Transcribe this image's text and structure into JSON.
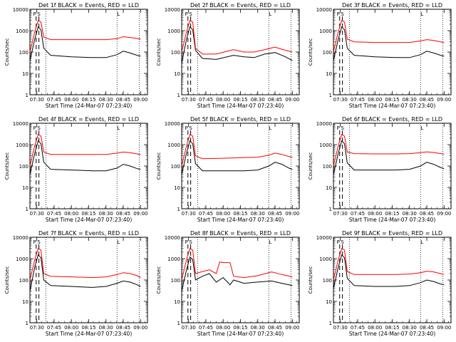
{
  "chart_data": [
    {
      "type": "line",
      "title": "Det 1f BLACK = Events, RED = LLD",
      "ylabel": "Counts/sec",
      "xlabel": "Start Time (24-Mar-07 07:23:40)",
      "x_ticks": [
        "07:30",
        "07:45",
        "08:00",
        "08:15",
        "08:30",
        "08:45",
        "09:00"
      ],
      "y_ticks": [
        "1",
        "10",
        "100",
        "1000",
        "10000"
      ],
      "yscale": "log",
      "ylim": [
        1,
        10000
      ],
      "peak_label_left": "P",
      "peak_label_mid": "S",
      "right_marker_label": "L",
      "series": [
        {
          "color": "#000000",
          "x": [
            7.4,
            7.47,
            7.52,
            7.56,
            7.6,
            7.7,
            8.0,
            8.3,
            8.5,
            8.66,
            8.75,
            8.85,
            8.95,
            9.0
          ],
          "y": [
            40,
            400,
            1500,
            1100,
            150,
            70,
            60,
            55,
            55,
            75,
            110,
            90,
            70,
            65
          ]
        },
        {
          "color": "#ff0000",
          "x": [
            7.4,
            7.47,
            7.52,
            7.56,
            7.6,
            7.7,
            8.0,
            8.3,
            8.5,
            8.66,
            8.75,
            8.85,
            8.95,
            9.0
          ],
          "y": [
            100,
            900,
            3000,
            2500,
            500,
            380,
            380,
            380,
            380,
            420,
            520,
            480,
            430,
            400
          ]
        }
      ]
    },
    {
      "type": "line",
      "title": "Det 2f BLACK = Events, RED = LLD",
      "ylabel": "Counts/sec",
      "xlabel": "Start Time (24-Mar-07 07:23:40)",
      "x_ticks": [
        "07:30",
        "07:45",
        "08:00",
        "08:15",
        "08:30",
        "08:45",
        "09:00"
      ],
      "y_ticks": [
        "1",
        "10",
        "100",
        "1000",
        "10000"
      ],
      "yscale": "log",
      "ylim": [
        1,
        10000
      ],
      "peak_label_left": "P",
      "peak_label_mid": "S",
      "right_marker_label": "L",
      "series": [
        {
          "color": "#000000",
          "x": [
            7.4,
            7.47,
            7.52,
            7.56,
            7.6,
            7.7,
            7.9,
            8.15,
            8.3,
            8.45,
            8.6,
            8.75,
            8.9,
            9.0
          ],
          "y": [
            30,
            400,
            1500,
            1100,
            120,
            50,
            45,
            70,
            60,
            55,
            80,
            95,
            60,
            40
          ]
        },
        {
          "color": "#ff0000",
          "x": [
            7.4,
            7.47,
            7.52,
            7.56,
            7.6,
            7.7,
            7.9,
            8.15,
            8.3,
            8.45,
            8.6,
            8.75,
            8.9,
            9.0
          ],
          "y": [
            100,
            900,
            3000,
            2500,
            150,
            80,
            80,
            130,
            100,
            100,
            130,
            170,
            120,
            100
          ]
        }
      ]
    },
    {
      "type": "line",
      "title": "Det 3f BLACK = Events, RED = LLD",
      "ylabel": "Counts/sec",
      "xlabel": "Start Time (24-Mar-07 07:23:40)",
      "x_ticks": [
        "07:30",
        "07:45",
        "08:00",
        "08:15",
        "08:30",
        "08:45",
        "09:00"
      ],
      "y_ticks": [
        "1",
        "10",
        "100",
        "1000",
        "10000"
      ],
      "yscale": "log",
      "ylim": [
        1,
        10000
      ],
      "peak_label_left": "P",
      "peak_label_mid": "S",
      "right_marker_label": "L",
      "series": [
        {
          "color": "#000000",
          "x": [
            7.4,
            7.47,
            7.52,
            7.56,
            7.6,
            7.7,
            8.0,
            8.3,
            8.5,
            8.66,
            8.75,
            8.85,
            8.95,
            9.0
          ],
          "y": [
            40,
            400,
            1500,
            1100,
            150,
            70,
            60,
            55,
            55,
            75,
            110,
            90,
            70,
            65
          ]
        },
        {
          "color": "#ff0000",
          "x": [
            7.4,
            7.47,
            7.52,
            7.56,
            7.6,
            7.7,
            8.0,
            8.3,
            8.5,
            8.66,
            8.75,
            8.85,
            8.95,
            9.0
          ],
          "y": [
            100,
            900,
            3000,
            2500,
            400,
            300,
            280,
            280,
            280,
            330,
            380,
            350,
            300,
            280
          ]
        }
      ]
    },
    {
      "type": "line",
      "title": "Det 4f BLACK = Events, RED = LLD",
      "ylabel": "Counts/sec",
      "xlabel": "Start Time (24-Mar-07 07:23:40)",
      "x_ticks": [
        "07:30",
        "07:45",
        "08:00",
        "08:15",
        "08:30",
        "08:45",
        "09:00"
      ],
      "y_ticks": [
        "1",
        "10",
        "100",
        "1000",
        "10000"
      ],
      "yscale": "log",
      "ylim": [
        1,
        10000
      ],
      "peak_label_left": "P",
      "peak_label_mid": "S",
      "right_marker_label": "L",
      "series": [
        {
          "color": "#000000",
          "x": [
            7.4,
            7.47,
            7.52,
            7.56,
            7.6,
            7.7,
            8.0,
            8.3,
            8.5,
            8.66,
            8.75,
            8.85,
            8.95,
            9.0
          ],
          "y": [
            40,
            400,
            1500,
            1100,
            150,
            70,
            65,
            60,
            60,
            80,
            120,
            100,
            75,
            70
          ]
        },
        {
          "color": "#ff0000",
          "x": [
            7.4,
            7.47,
            7.52,
            7.56,
            7.6,
            7.7,
            8.0,
            8.3,
            8.5,
            8.66,
            8.75,
            8.85,
            8.95,
            9.0
          ],
          "y": [
            100,
            900,
            3000,
            2500,
            450,
            350,
            350,
            350,
            350,
            400,
            450,
            420,
            370,
            340
          ]
        }
      ]
    },
    {
      "type": "line",
      "title": "Det 5f BLACK = Events, RED = LLD",
      "ylabel": "Counts/sec",
      "xlabel": "Start Time (24-Mar-07 07:23:40)",
      "x_ticks": [
        "07:30",
        "07:45",
        "08:00",
        "08:15",
        "08:30",
        "08:45",
        "09:00"
      ],
      "y_ticks": [
        "1",
        "10",
        "100",
        "1000",
        "10000"
      ],
      "yscale": "log",
      "ylim": [
        1,
        10000
      ],
      "peak_label_left": "P",
      "peak_label_mid": "S",
      "right_marker_label": "L",
      "series": [
        {
          "color": "#000000",
          "x": [
            7.4,
            7.47,
            7.52,
            7.56,
            7.6,
            7.7,
            8.0,
            8.3,
            8.5,
            8.66,
            8.75,
            8.85,
            8.95,
            9.0
          ],
          "y": [
            40,
            400,
            1500,
            1100,
            130,
            60,
            60,
            60,
            65,
            100,
            150,
            120,
            80,
            70
          ]
        },
        {
          "color": "#ff0000",
          "x": [
            7.4,
            7.47,
            7.52,
            7.56,
            7.6,
            7.7,
            8.0,
            8.3,
            8.5,
            8.66,
            8.75,
            8.85,
            8.95,
            9.0
          ],
          "y": [
            100,
            900,
            3000,
            2500,
            300,
            220,
            230,
            250,
            260,
            320,
            400,
            350,
            280,
            260
          ]
        }
      ]
    },
    {
      "type": "line",
      "title": "Det 6f BLACK = Events, RED = LLD",
      "ylabel": "Counts/sec",
      "xlabel": "Start Time (24-Mar-07 07:23:40)",
      "x_ticks": [
        "07:30",
        "07:45",
        "08:00",
        "08:15",
        "08:30",
        "08:45",
        "09:00"
      ],
      "y_ticks": [
        "1",
        "10",
        "100",
        "1000",
        "10000"
      ],
      "yscale": "log",
      "ylim": [
        1,
        10000
      ],
      "peak_label_left": "P",
      "peak_label_mid": "S",
      "right_marker_label": "L",
      "series": [
        {
          "color": "#000000",
          "x": [
            7.4,
            7.47,
            7.52,
            7.56,
            7.6,
            7.7,
            8.0,
            8.3,
            8.5,
            8.66,
            8.75,
            8.85,
            8.95,
            9.0
          ],
          "y": [
            40,
            400,
            1500,
            1100,
            140,
            65,
            65,
            65,
            70,
            100,
            150,
            120,
            85,
            75
          ]
        },
        {
          "color": "#ff0000",
          "x": [
            7.4,
            7.47,
            7.52,
            7.56,
            7.6,
            7.7,
            8.0,
            8.3,
            8.5,
            8.66,
            8.75,
            8.85,
            8.95,
            9.0
          ],
          "y": [
            100,
            900,
            3000,
            2500,
            450,
            380,
            370,
            370,
            380,
            420,
            460,
            430,
            380,
            360
          ]
        }
      ]
    },
    {
      "type": "line",
      "title": "Det 7f BLACK = Events, RED = LLD",
      "ylabel": "Counts/sec",
      "xlabel": "Start Time (24-Mar-07 07:23:40)",
      "x_ticks": [
        "07:30",
        "07:45",
        "08:00",
        "08:15",
        "08:30",
        "08:45",
        "09:00"
      ],
      "y_ticks": [
        "1",
        "10",
        "100",
        "1000",
        "10000"
      ],
      "yscale": "log",
      "ylim": [
        1,
        10000
      ],
      "peak_label_left": "P",
      "peak_label_mid": "S",
      "right_marker_label": "L",
      "series": [
        {
          "color": "#000000",
          "x": [
            7.4,
            7.47,
            7.52,
            7.56,
            7.6,
            7.7,
            8.0,
            8.3,
            8.5,
            8.66,
            8.75,
            8.85,
            8.95,
            9.0
          ],
          "y": [
            30,
            400,
            1500,
            1100,
            100,
            55,
            50,
            45,
            50,
            70,
            90,
            80,
            60,
            50
          ]
        },
        {
          "color": "#ff0000",
          "x": [
            7.4,
            7.47,
            7.52,
            7.56,
            7.6,
            7.7,
            8.0,
            8.3,
            8.5,
            8.66,
            8.75,
            8.85,
            8.95,
            9.0
          ],
          "y": [
            100,
            900,
            3000,
            2500,
            200,
            150,
            140,
            130,
            140,
            180,
            220,
            200,
            160,
            130
          ]
        }
      ]
    },
    {
      "type": "line",
      "title": "Det 8f BLACK = Events, RED = LLD",
      "ylabel": "Counts/sec",
      "xlabel": "Start Time (24-Mar-07 07:23:40)",
      "x_ticks": [
        "07:30",
        "07:45",
        "08:00",
        "08:15",
        "08:30",
        "08:45",
        "09:00"
      ],
      "y_ticks": [
        "1",
        "10",
        "100",
        "1000",
        "10000"
      ],
      "yscale": "log",
      "ylim": [
        1,
        10000
      ],
      "peak_label_left": "P",
      "peak_label_mid": "S",
      "right_marker_label": "L",
      "series": [
        {
          "color": "#000000",
          "x": [
            7.4,
            7.47,
            7.52,
            7.56,
            7.6,
            7.7,
            7.8,
            7.9,
            8.0,
            8.1,
            8.15,
            8.3,
            8.5,
            8.7,
            8.85,
            9.0
          ],
          "y": [
            30,
            300,
            1200,
            900,
            100,
            150,
            200,
            80,
            130,
            60,
            100,
            70,
            80,
            90,
            70,
            55
          ]
        },
        {
          "color": "#ff0000",
          "x": [
            7.4,
            7.47,
            7.52,
            7.56,
            7.6,
            7.7,
            7.8,
            7.9,
            7.95,
            8.0,
            8.1,
            8.15,
            8.3,
            8.5,
            8.7,
            8.85,
            9.0
          ],
          "y": [
            100,
            900,
            3000,
            2500,
            200,
            250,
            300,
            200,
            700,
            650,
            650,
            150,
            130,
            160,
            240,
            180,
            140
          ]
        }
      ]
    },
    {
      "type": "line",
      "title": "Det 9f BLACK = Events, RED = LLD",
      "ylabel": "Counts/sec",
      "xlabel": "Start Time (24-Mar-07 07:23:40)",
      "x_ticks": [
        "07:30",
        "07:45",
        "08:00",
        "08:15",
        "08:30",
        "08:45",
        "09:00"
      ],
      "y_ticks": [
        "1",
        "10",
        "100",
        "1000",
        "10000"
      ],
      "yscale": "log",
      "ylim": [
        1,
        10000
      ],
      "peak_label_left": "P",
      "peak_label_mid": "S",
      "right_marker_label": "L",
      "series": [
        {
          "color": "#000000",
          "x": [
            7.4,
            7.47,
            7.52,
            7.56,
            7.6,
            7.7,
            8.0,
            8.3,
            8.5,
            8.66,
            8.75,
            8.85,
            8.95,
            9.0
          ],
          "y": [
            40,
            400,
            1500,
            1100,
            120,
            55,
            50,
            50,
            55,
            75,
            100,
            85,
            65,
            60
          ]
        },
        {
          "color": "#ff0000",
          "x": [
            7.4,
            7.47,
            7.52,
            7.56,
            7.6,
            7.7,
            8.0,
            8.3,
            8.5,
            8.66,
            8.75,
            8.85,
            8.95,
            9.0
          ],
          "y": [
            100,
            900,
            3000,
            2500,
            250,
            180,
            180,
            180,
            190,
            220,
            260,
            240,
            200,
            180
          ]
        }
      ]
    }
  ]
}
